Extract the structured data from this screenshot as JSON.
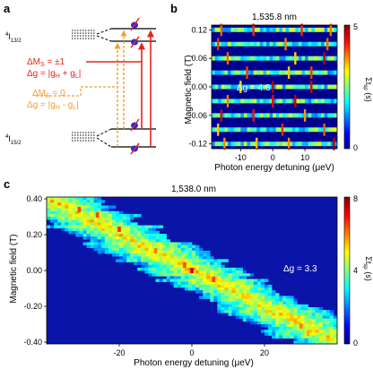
{
  "panels": {
    "a": {
      "label": "a",
      "upper_level": "4I13/2",
      "lower_level": "4I15/2",
      "delta_ms1": "ΔMS = ±1",
      "delta_g1": "Δg = |gH + gL|",
      "delta_ms0": "ΔMS = 0",
      "delta_g0": "Δg = |gH - gL|",
      "colors": {
        "red": "#e8231c",
        "orange": "#f39c34",
        "spin_blue": "#2a2ad8",
        "spin_red": "#e8231c"
      }
    },
    "b": {
      "label": "b",
      "title": "1,535.8 nm",
      "annotation": "Δg = 4.8"
    },
    "c": {
      "label": "c",
      "title": "1,538.0 nm",
      "annotation": "Δg = 3.3"
    }
  },
  "chart_data": [
    {
      "type": "heatmap",
      "panel": "b",
      "title": "1,535.8 nm",
      "xlabel": "Photon energy detuning (μeV)",
      "ylabel": "Magnetic field (T)",
      "colorbar_label": "Σt_sp (s)",
      "xlim": [
        -19,
        20
      ],
      "ylim": [
        -0.13,
        0.13
      ],
      "xticks": [
        -10,
        0,
        10
      ],
      "yticks": [
        0.12,
        0.06,
        0.0,
        -0.06,
        -0.12
      ],
      "ytick_labels": [
        "0.12",
        "0.06",
        "0.00",
        "-0.06",
        "-0.12"
      ],
      "clim": [
        0,
        5
      ],
      "cticks": [
        0,
        5
      ],
      "field_rows": [
        0.12,
        0.09,
        0.06,
        0.03,
        0.0,
        -0.03,
        -0.06,
        -0.09,
        -0.12
      ],
      "bright_lines": [
        {
          "y": 0.12,
          "x": [
            -16,
            -6,
            9,
            18
          ]
        },
        {
          "y": 0.09,
          "x": [
            -17,
            4,
            17
          ]
        },
        {
          "y": 0.06,
          "x": [
            -14,
            7,
            16
          ]
        },
        {
          "y": 0.03,
          "x": [
            -8,
            5,
            12
          ]
        },
        {
          "y": 0.0,
          "x": [
            -10,
            0,
            12
          ]
        },
        {
          "y": -0.03,
          "x": [
            -14,
            0,
            7
          ]
        },
        {
          "y": -0.06,
          "x": [
            -16,
            -6,
            10
          ]
        },
        {
          "y": -0.09,
          "x": [
            -17,
            3,
            16
          ]
        },
        {
          "y": -0.12,
          "x": [
            -15,
            -5,
            5,
            19
          ]
        }
      ]
    },
    {
      "type": "heatmap",
      "panel": "c",
      "title": "1,538.0 nm",
      "xlabel": "Photon energy detuning (μeV)",
      "ylabel": "Magnetic field (T)",
      "colorbar_label": "Σt_sp (s)",
      "xlim": [
        -40,
        40
      ],
      "ylim": [
        -0.41,
        0.41
      ],
      "xticks": [
        -20,
        0,
        20
      ],
      "yticks": [
        0.4,
        0.2,
        0.0,
        -0.2,
        -0.4
      ],
      "ytick_labels": [
        "0.40",
        "0.20",
        "0.00",
        "-0.20",
        "-0.40"
      ],
      "clim": [
        0,
        8
      ],
      "cticks": [
        0,
        4,
        8
      ],
      "diagonal_branch": {
        "x_at_top": -40,
        "y_at_top": 0.4,
        "x_at_bottom": 40,
        "y_at_bottom": -0.4
      },
      "hot_spots": [
        {
          "x": -31,
          "y": 0.34
        },
        {
          "x": -26,
          "y": 0.31
        },
        {
          "x": -20,
          "y": 0.23
        },
        {
          "x": -10,
          "y": 0.11
        },
        {
          "x": -2,
          "y": 0.03
        },
        {
          "x": 0,
          "y": 0.0
        },
        {
          "x": 6,
          "y": -0.05
        },
        {
          "x": 14,
          "y": -0.14
        },
        {
          "x": 30,
          "y": -0.31
        },
        {
          "x": 32,
          "y": -0.35
        }
      ]
    }
  ]
}
